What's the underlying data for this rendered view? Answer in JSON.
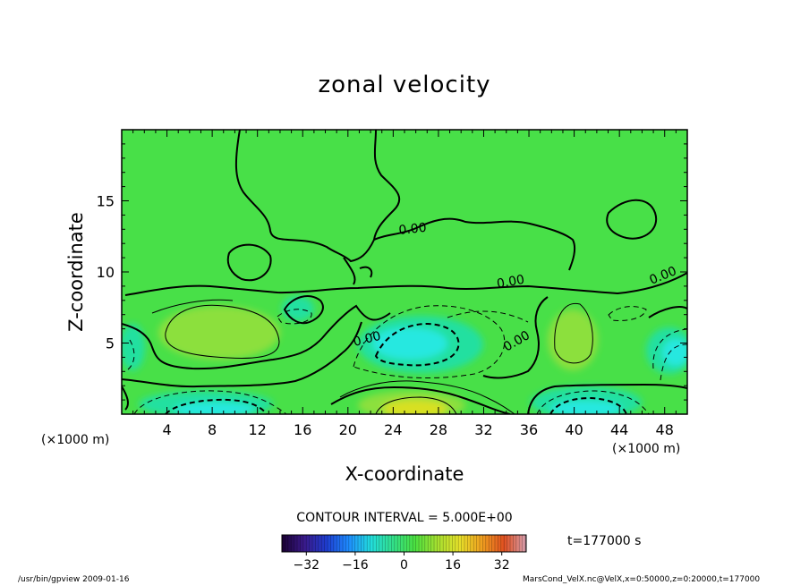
{
  "chart_data": {
    "type": "heatmap",
    "title": "zonal velocity",
    "xlabel": "X-coordinate",
    "ylabel": "Z-coordinate",
    "x_unit_label": "(×1000 m)",
    "y_unit_label": "(×1000 m)",
    "xlim": [
      0,
      50
    ],
    "ylim": [
      0,
      20
    ],
    "x_ticks": [
      4,
      8,
      12,
      16,
      20,
      24,
      28,
      32,
      36,
      40,
      44,
      48
    ],
    "y_ticks": [
      5,
      10,
      15
    ],
    "contour_interval_text": "CONTOUR INTERVAL = 5.000E+00",
    "contour_labels": [
      "0.00",
      "0.00",
      "0.00",
      "0.00",
      "0.00"
    ],
    "time_text": "t=177000 s",
    "colorbar": {
      "range": [
        -40,
        40
      ],
      "ticks": [
        -32,
        -16,
        0,
        16,
        32
      ],
      "colors": [
        "#1a0033",
        "#3a1a8a",
        "#1e3ccf",
        "#1e8cff",
        "#22dddd",
        "#33e08a",
        "#4be040",
        "#a6e030",
        "#e6e02a",
        "#f0a020",
        "#e05020",
        "#d8a0b0"
      ]
    },
    "field_colors": {
      "background": "#48e048",
      "positive_weak": "#8ce03c",
      "positive_strong": "#d8e020",
      "negative_weak": "#20e0a0",
      "negative_strong": "#28e8e0"
    }
  },
  "footer": {
    "left": "/usr/bin/gpview  2009-01-16",
    "right": "MarsCond_VelX.nc@VelX,x=0:50000,z=0:20000,t=177000"
  }
}
